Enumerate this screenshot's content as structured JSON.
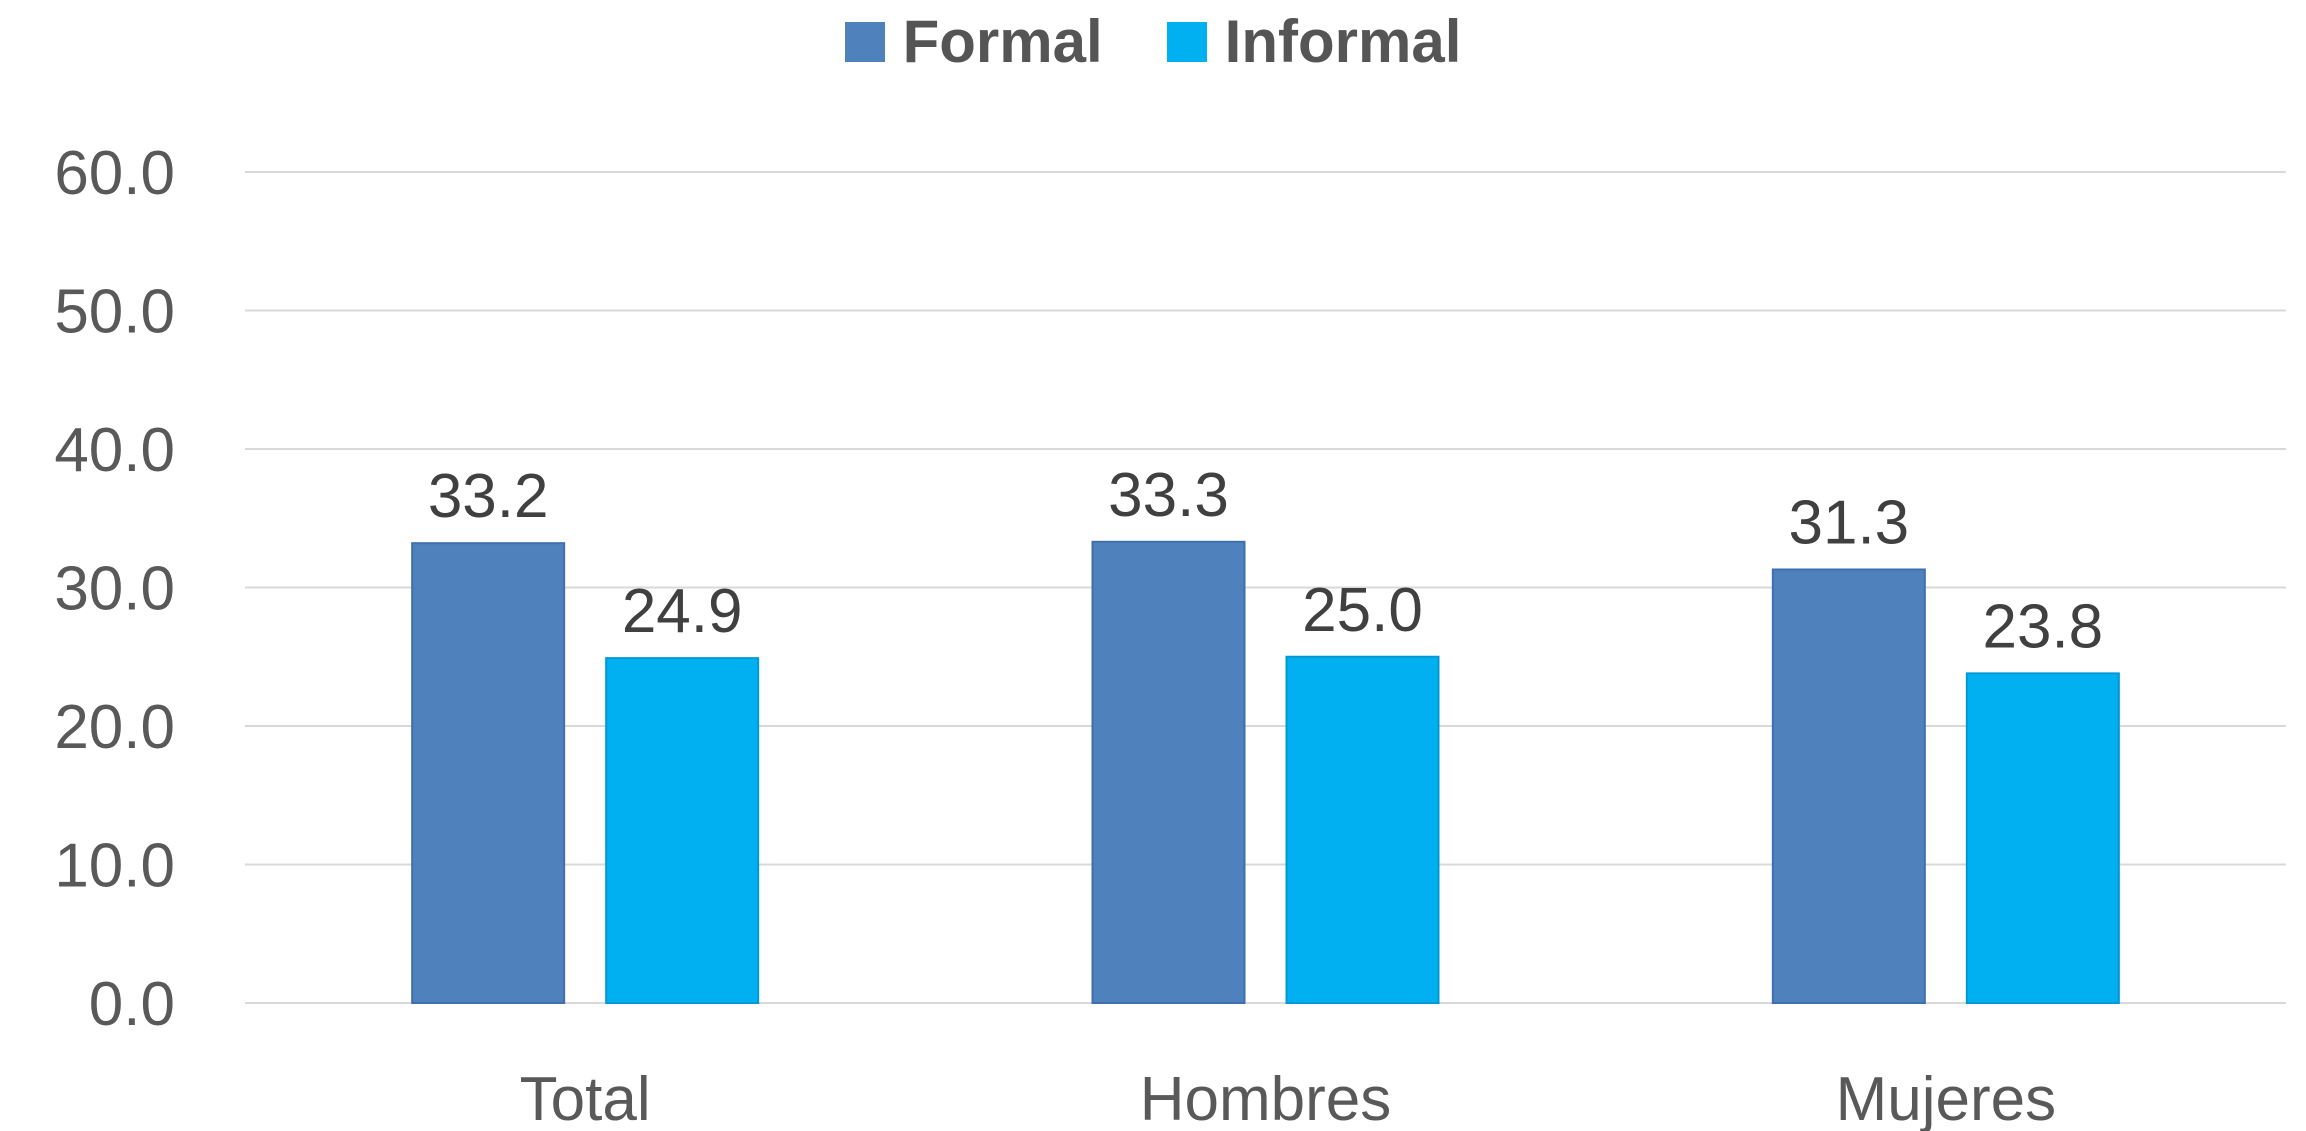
{
  "chart_data": {
    "type": "bar",
    "categories": [
      "Total",
      "Hombres",
      "Mujeres"
    ],
    "series": [
      {
        "name": "Formal",
        "values": [
          33.2,
          33.3,
          31.3
        ],
        "color": "#4F81BD"
      },
      {
        "name": "Informal",
        "values": [
          24.9,
          25.0,
          23.8
        ],
        "color": "#00B0F0"
      }
    ],
    "value_labels": {
      "Formal": [
        "33.2",
        "33.3",
        "31.3"
      ],
      "Informal": [
        "24.9",
        "25.0",
        "23.8"
      ]
    },
    "ylim": [
      0,
      60
    ],
    "yticks": [
      "0.0",
      "10.0",
      "20.0",
      "30.0",
      "40.0",
      "50.0",
      "60.0"
    ],
    "grid": true,
    "legend_position": "top-center",
    "gridline_color": "#D9D9D9",
    "text_color": "#595959"
  }
}
